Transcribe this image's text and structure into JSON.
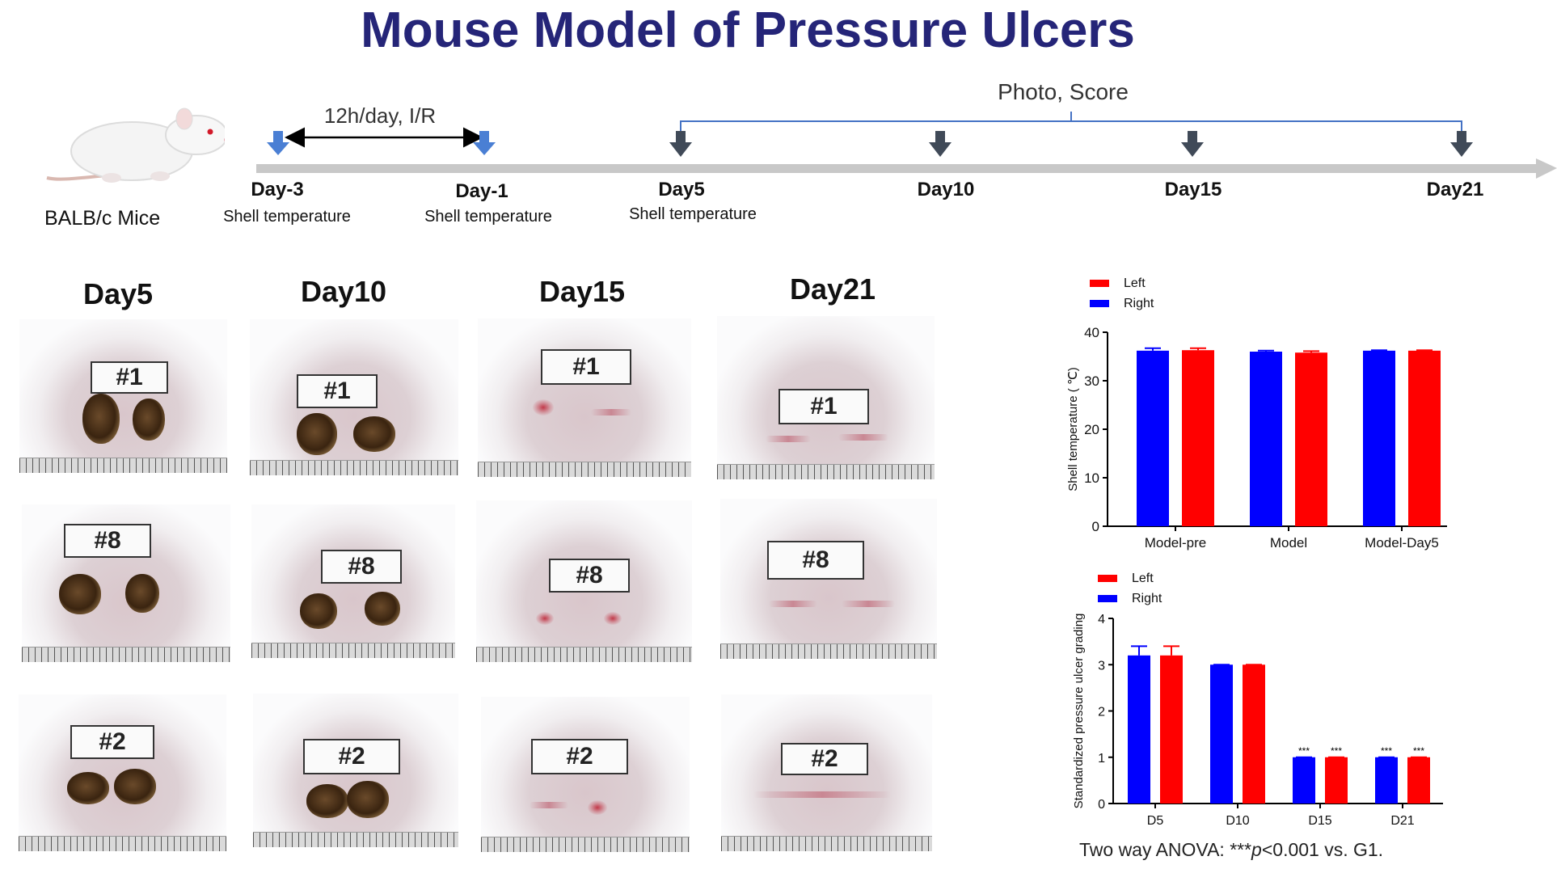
{
  "title": "Mouse Model of Pressure Ulcers",
  "mouse_label": "BALB/c  Mice",
  "timeline": {
    "ir_label": "12h/day,   I/R",
    "photo_score_label": "Photo, Score",
    "points": [
      {
        "day": "Day-3",
        "sub": "Shell temperature"
      },
      {
        "day": "Day-1",
        "sub": "Shell temperature"
      },
      {
        "day": "Day5",
        "sub": "Shell temperature"
      },
      {
        "day": "Day10",
        "sub": ""
      },
      {
        "day": "Day15",
        "sub": ""
      },
      {
        "day": "Day21",
        "sub": ""
      }
    ]
  },
  "photo_grid": {
    "columns": [
      "Day5",
      "Day10",
      "Day15",
      "Day21"
    ],
    "rows": [
      "#1",
      "#8",
      "#2"
    ]
  },
  "chart_data": [
    {
      "type": "bar",
      "categories": [
        "Model-pre",
        "Model",
        "Model-Day5"
      ],
      "series": [
        {
          "name": "Right",
          "values": [
            36.2,
            36.0,
            36.2
          ],
          "errors": [
            0.5,
            0.2,
            0.1
          ],
          "color": "#0000ff"
        },
        {
          "name": "Left",
          "values": [
            36.3,
            35.8,
            36.2
          ],
          "errors": [
            0.4,
            0.3,
            0.1
          ],
          "color": "#ff0000"
        }
      ],
      "legend": [
        "Left",
        "Right"
      ],
      "xlabel": "",
      "ylabel": "Shell temperature ( ℃)",
      "ylim": [
        0,
        40
      ],
      "yticks": [
        0,
        10,
        20,
        30,
        40
      ],
      "legend_position": "top-left"
    },
    {
      "type": "bar",
      "categories": [
        "D5",
        "D10",
        "D15",
        "D21"
      ],
      "series": [
        {
          "name": "Right",
          "values": [
            3.2,
            3.0,
            1.0,
            1.0
          ],
          "errors": [
            0.2,
            0.0,
            0.0,
            0.0
          ],
          "color": "#0000ff"
        },
        {
          "name": "Left",
          "values": [
            3.2,
            3.0,
            1.0,
            1.0
          ],
          "errors": [
            0.2,
            0.0,
            0.0,
            0.0
          ],
          "color": "#ff0000"
        }
      ],
      "legend": [
        "Left",
        "Right"
      ],
      "annotations": [
        "",
        "",
        "***",
        "***"
      ],
      "xlabel": "",
      "ylabel": "Standardized pressure ulcer grading",
      "ylim": [
        0,
        4
      ],
      "yticks": [
        0,
        1,
        2,
        3,
        4
      ],
      "legend_position": "top-left"
    }
  ],
  "anova_prefix": "Two way ANOVA: ***",
  "anova_p": "p",
  "anova_suffix": "<0.001 vs. G1."
}
